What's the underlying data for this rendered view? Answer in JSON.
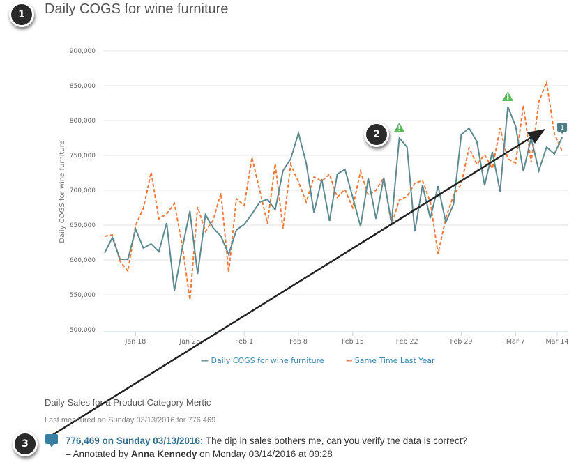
{
  "header": {
    "title": "Daily COGS for wine furniture"
  },
  "callouts": [
    "1",
    "2",
    "3"
  ],
  "chart_data": {
    "type": "line",
    "title": "Daily COGS for wine furniture",
    "xlabel": "",
    "ylabel": "Daily COGS for wine furniture",
    "ylim": [
      500000,
      900000
    ],
    "yticks": [
      "500,000",
      "550,000",
      "600,000",
      "650,000",
      "700,000",
      "750,000",
      "800,000",
      "850,000",
      "900,000"
    ],
    "xticks": [
      "Jan 18",
      "Jan 25",
      "Feb 1",
      "Feb 8",
      "Feb 15",
      "Feb 22",
      "Feb 29",
      "Mar 7",
      "Mar 14"
    ],
    "grid": true,
    "legend_position": "bottom",
    "x_start": "Jan 14",
    "x_end": "Mar 13",
    "series": [
      {
        "name": "Daily COGS for wine furniture",
        "style": "solid",
        "color": "#5d8a8f",
        "values": [
          610000,
          632000,
          601000,
          601000,
          644000,
          617000,
          623000,
          612000,
          653000,
          556000,
          616000,
          670000,
          580000,
          665000,
          646000,
          634000,
          608000,
          643000,
          651000,
          666000,
          683000,
          687000,
          672000,
          728000,
          745000,
          782000,
          739000,
          668000,
          716000,
          656000,
          723000,
          730000,
          690000,
          648000,
          717000,
          659000,
          718000,
          653000,
          775000,
          762000,
          641000,
          707000,
          660000,
          706000,
          654000,
          680000,
          780000,
          789000,
          770000,
          707000,
          755000,
          698000,
          820000,
          792000,
          727000,
          775000,
          728000,
          762000,
          752000,
          776000
        ]
      },
      {
        "name": "Same Time Last Year",
        "style": "dashed",
        "color": "#f07a3a",
        "values": [
          634000,
          636000,
          598000,
          584000,
          650000,
          674000,
          726000,
          659000,
          666000,
          681000,
          622000,
          543000,
          676000,
          641000,
          657000,
          696000,
          582000,
          688000,
          678000,
          747000,
          700000,
          652000,
          738000,
          645000,
          737000,
          712000,
          683000,
          719000,
          713000,
          723000,
          690000,
          701000,
          675000,
          727000,
          693000,
          700000,
          718000,
          650000,
          686000,
          691000,
          710000,
          714000,
          683000,
          609000,
          660000,
          693000,
          709000,
          761000,
          737000,
          751000,
          731000,
          789000,
          745000,
          739000,
          822000,
          740000,
          827000,
          855000,
          781000,
          756000
        ]
      }
    ],
    "markers": [
      {
        "type": "warning",
        "x_index": 38,
        "color": "#5cb85c"
      },
      {
        "type": "warning",
        "x_index": 52,
        "color": "#5cb85c"
      },
      {
        "type": "annotation-count",
        "x_index": 59,
        "label": "1",
        "color": "#4e7d84"
      }
    ]
  },
  "legend": {
    "series1": "Daily COGS for wine furniture",
    "series2": "Same Time Last Year"
  },
  "metric": {
    "name": "Daily Sales for a Product Category Mertic",
    "last_measured": "Last measured on Sunday 03/13/2016 for 776,469"
  },
  "annotation": {
    "headline": "776,469 on Sunday 03/13/2016:",
    "text": " The dip in sales bothers me, can you verify the data is correct?",
    "by_prefix": "– Annotated by ",
    "author": "Anna Kennedy",
    "by_suffix": " on Monday 03/14/2016 at 09:28"
  }
}
